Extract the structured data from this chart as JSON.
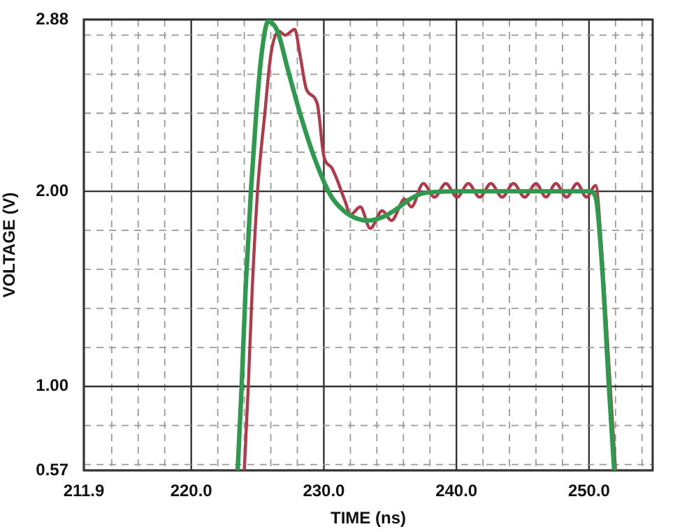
{
  "chart_data": {
    "type": "line",
    "xlabel": "TIME (ns)",
    "ylabel": "VOLTAGE (V)",
    "xlim": [
      211.9,
      254.8
    ],
    "xticks": [
      211.9,
      {
        "value": 214,
        "label": null
      },
      {
        "value": 216,
        "label": null
      },
      {
        "value": 218,
        "label": null
      },
      {
        "value": 220,
        "label": "220.0"
      },
      {
        "value": 222,
        "label": null
      },
      {
        "value": 224,
        "label": null
      },
      {
        "value": 226,
        "label": null
      },
      {
        "value": 228,
        "label": null
      },
      {
        "value": 230,
        "label": "230.0"
      },
      {
        "value": 232,
        "label": null
      },
      {
        "value": 234,
        "label": null
      },
      {
        "value": 236,
        "label": null
      },
      {
        "value": 238,
        "label": null
      },
      {
        "value": 240,
        "label": "240.0"
      },
      {
        "value": 242,
        "label": null
      },
      {
        "value": 244,
        "label": null
      },
      {
        "value": 246,
        "label": null
      },
      {
        "value": 248,
        "label": null
      },
      {
        "value": 250,
        "label": "250.0"
      },
      {
        "value": 252,
        "label": null
      },
      {
        "value": 254,
        "label": null
      }
    ],
    "ylim": [
      0.57,
      2.88
    ],
    "yticks": [
      0.57,
      {
        "value": 0.6,
        "label": null
      },
      {
        "value": 0.8,
        "label": null
      },
      {
        "value": 1,
        "label": "1.00"
      },
      {
        "value": 1.2,
        "label": null
      },
      {
        "value": 1.4,
        "label": null
      },
      {
        "value": 1.6,
        "label": null
      },
      {
        "value": 1.8,
        "label": null
      },
      {
        "value": 2,
        "label": "2.00"
      },
      {
        "value": 2.2,
        "label": null
      },
      {
        "value": 2.4,
        "label": null
      },
      {
        "value": 2.6,
        "label": null
      },
      {
        "value": 2.8,
        "label": null
      },
      2.88
    ],
    "grid": true,
    "legend": false,
    "marker": "none",
    "line_style": "solid",
    "series": [
      {
        "color": "#2e9a4e",
        "x": [
          223.5,
          223.8,
          224.1,
          224.5,
          224.9,
          225.3,
          225.8,
          226.5,
          227.3,
          228.2,
          229.3,
          230.5,
          231.5,
          232.5,
          233.3,
          234.5,
          235.5,
          236.5,
          237.5,
          240,
          245,
          250,
          250.5,
          251,
          251.5,
          251.9
        ],
        "values": [
          0.57,
          1.0,
          1.5,
          2.0,
          2.4,
          2.7,
          2.87,
          2.82,
          2.62,
          2.4,
          2.17,
          1.98,
          1.9,
          1.86,
          1.85,
          1.87,
          1.91,
          1.96,
          1.99,
          2.0,
          2.0,
          2.0,
          1.97,
          1.6,
          1.0,
          0.57
        ]
      },
      {
        "color": "#b03a4a",
        "x": [
          224.0,
          224.3,
          224.6,
          225.0,
          225.55,
          226.0,
          226.6,
          227.1,
          227.8,
          228.2,
          228.7,
          229.5,
          230.0,
          230.6,
          231.6,
          232.0,
          232.75,
          233.5,
          234.4,
          235.1,
          236.1,
          236.6,
          237.5,
          238.35,
          239.2,
          240.05,
          240.9,
          241.75,
          242.6,
          243.45,
          244.3,
          245.15,
          246.0,
          246.75,
          247.5,
          248.3,
          249.1,
          249.8,
          250.5,
          251.0,
          251.6,
          252.0
        ],
        "values": [
          0.57,
          1.0,
          1.5,
          2.0,
          2.4,
          2.7,
          2.82,
          2.8,
          2.83,
          2.7,
          2.52,
          2.45,
          2.18,
          2.12,
          1.95,
          1.88,
          1.92,
          1.81,
          1.9,
          1.85,
          1.96,
          1.92,
          2.04,
          1.97,
          2.04,
          1.97,
          2.04,
          1.97,
          2.04,
          1.97,
          2.04,
          1.97,
          2.04,
          1.97,
          2.04,
          1.97,
          2.04,
          1.97,
          2.03,
          1.65,
          1.0,
          0.57
        ]
      }
    ]
  }
}
